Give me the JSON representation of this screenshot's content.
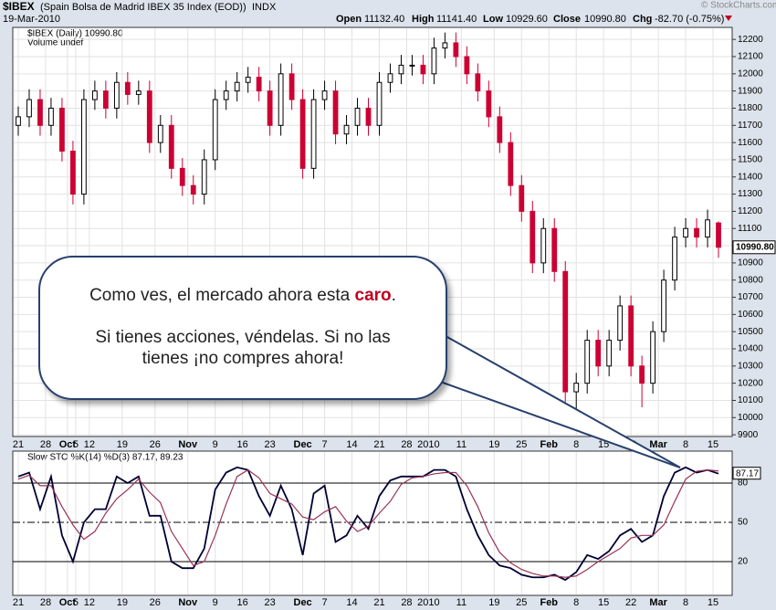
{
  "header": {
    "symbol": "$IBEX",
    "name": "(Spain Bolsa de Madrid IBEX 35 Index (EOD))",
    "exchange": "INDX",
    "date": "19-Mar-2010",
    "open_label": "Open",
    "open": "11132.40",
    "high_label": "High",
    "high": "11141.40",
    "low_label": "Low",
    "low": "10929.60",
    "close_label": "Close",
    "close": "10990.80",
    "chg_label": "Chg",
    "chg": "-82.70 (-0.75%)",
    "credit": "© StockCharts.com"
  },
  "callout": {
    "line1_pre": "Como ves, el mercado ahora esta ",
    "line1_em": "caro",
    "line1_post": ".",
    "line2": "Si tienes acciones, véndelas. Si no las tienes ¡no compres ahora!"
  },
  "chart_data": [
    {
      "type": "candlestick",
      "legend": "$IBEX (Daily) 10990.80",
      "legend2": "Volume undef",
      "up_color": "#000000",
      "down_color": "#cc0033",
      "grid": true,
      "xlim": [
        -1,
        130.5
      ],
      "ylim": [
        9890,
        12270
      ],
      "yticks": [
        9900,
        10000,
        10100,
        10200,
        10300,
        10400,
        10500,
        10600,
        10700,
        10800,
        10900,
        11000,
        11100,
        11200,
        11300,
        11400,
        11500,
        11600,
        11700,
        11800,
        11900,
        12000,
        12100,
        12200
      ],
      "xticks": [
        {
          "value": 0,
          "label": "21"
        },
        {
          "value": 5,
          "label": "28"
        },
        {
          "value": 9,
          "label": "Oct"
        },
        {
          "value": 10.5,
          "label": "5"
        },
        {
          "value": 13,
          "label": "12"
        },
        {
          "value": 19,
          "label": "19"
        },
        {
          "value": 25,
          "label": "26"
        },
        {
          "value": 31,
          "label": "Nov"
        },
        {
          "value": 36,
          "label": "9"
        },
        {
          "value": 41,
          "label": "16"
        },
        {
          "value": 46,
          "label": "23"
        },
        {
          "value": 52,
          "label": "Dec"
        },
        {
          "value": 56,
          "label": "7"
        },
        {
          "value": 61,
          "label": "14"
        },
        {
          "value": 66,
          "label": "21"
        },
        {
          "value": 71,
          "label": "28"
        },
        {
          "value": 75,
          "label": "2010"
        },
        {
          "value": 81,
          "label": "11"
        },
        {
          "value": 87,
          "label": "19"
        },
        {
          "value": 92,
          "label": "25"
        },
        {
          "value": 97,
          "label": "Feb"
        },
        {
          "value": 102,
          "label": "8"
        },
        {
          "value": 107,
          "label": "15"
        },
        {
          "value": 112,
          "label": "22"
        },
        {
          "value": 117,
          "label": "Mar"
        },
        {
          "value": 122,
          "label": "8"
        },
        {
          "value": 127,
          "label": "15"
        }
      ],
      "x": [
        0,
        2,
        4,
        6,
        8,
        10,
        12,
        14,
        16,
        18,
        20,
        22,
        24,
        26,
        28,
        30,
        32,
        34,
        36,
        38,
        40,
        42,
        44,
        46,
        48,
        50,
        52,
        54,
        56,
        58,
        60,
        62,
        64,
        66,
        68,
        70,
        72,
        74,
        76,
        78,
        80,
        82,
        84,
        86,
        88,
        90,
        92,
        94,
        96,
        98,
        100,
        102,
        104,
        106,
        108,
        110,
        112,
        114,
        116,
        118,
        120,
        122,
        124,
        126,
        128
      ],
      "open": [
        11700,
        11750,
        11850,
        11700,
        11800,
        11550,
        11300,
        11850,
        11900,
        11800,
        11950,
        11880,
        11900,
        11600,
        11700,
        11450,
        11350,
        11300,
        11500,
        11850,
        11900,
        11950,
        11980,
        11900,
        11700,
        12000,
        11850,
        11450,
        11850,
        11900,
        11650,
        11700,
        11800,
        11700,
        11950,
        12000,
        12050,
        12050,
        12000,
        12150,
        12180,
        12100,
        12000,
        11900,
        11750,
        11600,
        11350,
        11200,
        10900,
        11100,
        10850,
        10150,
        10200,
        10450,
        10300,
        10450,
        10650,
        10300,
        10200,
        10500,
        10800,
        11050,
        11100,
        11050,
        11132.4
      ],
      "high": [
        11810,
        11910,
        11910,
        11860,
        11860,
        11610,
        11910,
        11960,
        11960,
        12010,
        12010,
        11960,
        11960,
        11760,
        11760,
        11510,
        11410,
        11560,
        11910,
        11960,
        12010,
        12040,
        12040,
        11960,
        12060,
        12060,
        11910,
        11910,
        11960,
        11960,
        11760,
        11860,
        11860,
        12010,
        12060,
        12110,
        12110,
        12110,
        12210,
        12240,
        12240,
        12160,
        12060,
        11960,
        11810,
        11660,
        11410,
        11260,
        11160,
        11160,
        10910,
        10260,
        10510,
        10510,
        10510,
        10710,
        10710,
        10360,
        10560,
        10860,
        11110,
        11160,
        11160,
        11210,
        11141.4
      ],
      "low": [
        11640,
        11690,
        11640,
        11640,
        11490,
        11240,
        11240,
        11790,
        11740,
        11740,
        11820,
        11820,
        11540,
        11540,
        11390,
        11290,
        11240,
        11240,
        11440,
        11790,
        11840,
        11890,
        11840,
        11640,
        11640,
        11790,
        11390,
        11390,
        11790,
        11590,
        11590,
        11640,
        11640,
        11640,
        11890,
        11940,
        11990,
        11940,
        11940,
        12090,
        12040,
        11940,
        11840,
        11690,
        11540,
        11290,
        11140,
        10840,
        10840,
        10790,
        10090,
        9930,
        10140,
        10240,
        10240,
        10390,
        10240,
        10060,
        10140,
        10440,
        10740,
        10990,
        10990,
        10990,
        10929.6
      ],
      "close": [
        11750,
        11850,
        11700,
        11800,
        11550,
        11300,
        11850,
        11900,
        11800,
        11950,
        11880,
        11900,
        11600,
        11700,
        11450,
        11350,
        11300,
        11500,
        11850,
        11900,
        11950,
        11980,
        11900,
        11700,
        12000,
        11850,
        11450,
        11850,
        11900,
        11650,
        11700,
        11800,
        11700,
        11950,
        12000,
        12050,
        12050,
        12000,
        12150,
        12180,
        12100,
        12000,
        11900,
        11750,
        11600,
        11350,
        11200,
        10900,
        11100,
        10850,
        10150,
        10200,
        10450,
        10300,
        10450,
        10650,
        10300,
        10200,
        10500,
        10800,
        11050,
        11100,
        11050,
        11150,
        10990.8
      ]
    },
    {
      "type": "line",
      "legend": "Slow STO %K(14) %D(3) 87.17, 89.23",
      "ylim": [
        -5.8,
        104.4
      ],
      "yticks": [
        20,
        50,
        80
      ],
      "series": [
        {
          "name": "%K",
          "color": "#000033",
          "values": [
            85,
            88,
            60,
            85,
            40,
            20,
            50,
            60,
            60,
            85,
            80,
            85,
            55,
            55,
            20,
            15,
            15,
            30,
            75,
            88,
            92,
            90,
            70,
            55,
            78,
            60,
            25,
            72,
            78,
            35,
            40,
            55,
            45,
            70,
            82,
            85,
            85,
            85,
            90,
            90,
            85,
            60,
            40,
            25,
            17,
            15,
            10,
            8,
            8,
            10,
            6,
            12,
            25,
            22,
            28,
            40,
            45,
            35,
            40,
            70,
            88,
            92,
            88,
            90,
            87.17
          ]
        },
        {
          "name": "%D",
          "color": "#993355",
          "values": [
            83,
            86,
            78,
            78,
            62,
            48,
            37,
            43,
            57,
            68,
            75,
            83,
            73,
            65,
            43,
            30,
            17,
            20,
            40,
            64,
            85,
            90,
            84,
            72,
            68,
            64,
            54,
            52,
            58,
            62,
            51,
            43,
            47,
            57,
            66,
            79,
            84,
            85,
            87,
            88,
            88,
            78,
            62,
            42,
            27,
            19,
            14,
            11,
            9,
            9,
            8,
            9,
            14,
            20,
            25,
            30,
            38,
            40,
            40,
            48,
            66,
            83,
            89,
            90,
            89.23
          ]
        }
      ]
    }
  ]
}
